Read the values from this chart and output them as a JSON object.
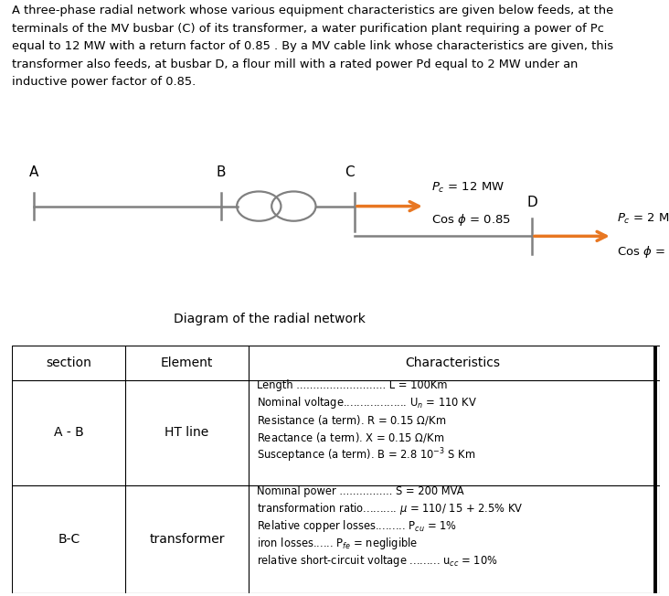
{
  "background_color": "#ffffff",
  "line_color": "#808080",
  "text_color": "#000000",
  "arrow_color": "#E87722",
  "diagram_label": "Diagram of the radial network",
  "paragraph_lines": [
    "A three-phase radial network whose various equipment characteristics are given below feeds, at the",
    "terminals of the MV busbar (C) of its transformer, a water purification plant requiring a power of Pc",
    "equal to 12 MW with a return factor of 0.85 . By a MV cable link whose characteristics are given, this",
    "transformer also feeds, at busbar D, a flour mill with a rated power Pd equal to 2 MW under an",
    "inductive power factor of 0.85."
  ],
  "row1_section": "A - B",
  "row1_element": "HT line",
  "row2_section": "B-C",
  "row2_element": "transformer",
  "header": [
    "section",
    "Element",
    "Characteristics"
  ]
}
